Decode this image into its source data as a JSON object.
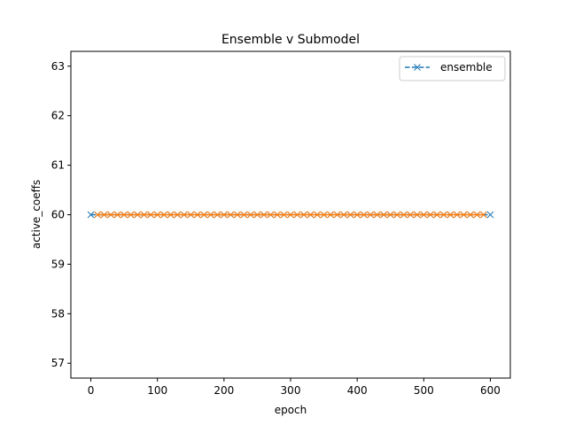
{
  "chart_data": {
    "type": "line",
    "title": "Ensemble v Submodel",
    "xlabel": "epoch",
    "ylabel": "active_coeffs",
    "xlim": [
      -30,
      630
    ],
    "ylim": [
      56.7,
      63.3
    ],
    "xticks": [
      0,
      100,
      200,
      300,
      400,
      500,
      600
    ],
    "yticks": [
      57,
      58,
      59,
      60,
      61,
      62,
      63
    ],
    "grid": false,
    "legend_position": "top-right",
    "series": [
      {
        "name": "ensemble",
        "color": "#1f77b4",
        "style": "dashed",
        "marker": "x",
        "x_start": 0,
        "x_step": 10,
        "x_end": 600,
        "value": 60
      },
      {
        "color": "#ff7f0e",
        "style": "solid",
        "marker": "x",
        "x_start": 10,
        "x_step": 10,
        "x_end": 590,
        "value": 60
      }
    ]
  }
}
